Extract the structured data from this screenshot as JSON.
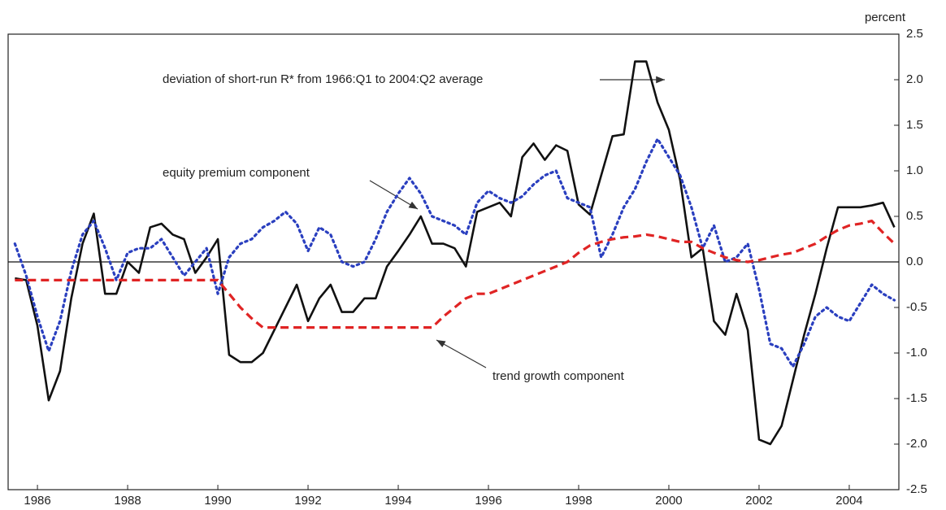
{
  "chart_data": {
    "type": "line",
    "y_label": "percent",
    "x": [
      1985.5,
      1985.75,
      1986,
      1986.25,
      1986.5,
      1986.75,
      1987,
      1987.25,
      1987.5,
      1987.75,
      1988,
      1988.25,
      1988.5,
      1988.75,
      1989,
      1989.25,
      1989.5,
      1989.75,
      1990,
      1990.25,
      1990.5,
      1990.75,
      1991,
      1991.25,
      1991.5,
      1991.75,
      1992,
      1992.25,
      1992.5,
      1992.75,
      1993,
      1993.25,
      1993.5,
      1993.75,
      1994,
      1994.25,
      1994.5,
      1994.75,
      1995,
      1995.25,
      1995.5,
      1995.75,
      1996,
      1996.25,
      1996.5,
      1996.75,
      1997,
      1997.25,
      1997.5,
      1997.75,
      1998,
      1998.25,
      1998.5,
      1998.75,
      1999,
      1999.25,
      1999.5,
      1999.75,
      2000,
      2000.25,
      2000.5,
      2000.75,
      2001,
      2001.25,
      2001.5,
      2001.75,
      2002,
      2002.25,
      2002.5,
      2002.75,
      2003,
      2003.25,
      2003.5,
      2003.75,
      2004,
      2004.25,
      2004.5,
      2004.75,
      2005
    ],
    "series": [
      {
        "name": "deviation of short-run R* from 1966:Q1 to 2004:Q2 average",
        "color": "#111111",
        "style": "solid",
        "values": [
          -0.18,
          -0.2,
          -0.7,
          -1.52,
          -1.2,
          -0.4,
          0.2,
          0.53,
          -0.35,
          -0.35,
          0,
          -0.12,
          0.38,
          0.42,
          0.3,
          0.25,
          -0.12,
          0.05,
          0.25,
          -1.02,
          -1.1,
          -1.1,
          -1.0,
          -0.75,
          -0.5,
          -0.25,
          -0.65,
          -0.4,
          -0.25,
          -0.55,
          -0.55,
          -0.4,
          -0.4,
          -0.05,
          0.12,
          0.3,
          0.5,
          0.2,
          0.2,
          0.15,
          -0.05,
          0.55,
          0.6,
          0.65,
          0.5,
          1.15,
          1.3,
          1.12,
          1.28,
          1.22,
          0.63,
          0.52,
          0.95,
          1.38,
          1.4,
          2.2,
          2.2,
          1.75,
          1.45,
          0.9,
          0.05,
          0.15,
          -0.65,
          -0.8,
          -0.35,
          -0.75,
          -1.95,
          -2.0,
          -1.8,
          -1.3,
          -0.8,
          -0.35,
          0.15,
          0.6,
          0.6,
          0.6,
          0.62,
          0.65,
          0.38
        ]
      },
      {
        "name": "equity premium component",
        "color": "#2a3fbf",
        "style": "dotted",
        "values": [
          0.2,
          -0.15,
          -0.6,
          -0.98,
          -0.65,
          -0.1,
          0.3,
          0.45,
          0.15,
          -0.2,
          0.1,
          0.15,
          0.15,
          0.25,
          0.05,
          -0.15,
          0,
          0.15,
          -0.35,
          0.05,
          0.2,
          0.25,
          0.38,
          0.45,
          0.55,
          0.42,
          0.12,
          0.38,
          0.3,
          0,
          -0.05,
          0,
          0.25,
          0.55,
          0.75,
          0.92,
          0.75,
          0.5,
          0.45,
          0.4,
          0.3,
          0.65,
          0.78,
          0.7,
          0.65,
          0.72,
          0.85,
          0.95,
          1.0,
          0.7,
          0.65,
          0.6,
          0.05,
          0.3,
          0.6,
          0.8,
          1.1,
          1.35,
          1.15,
          0.95,
          0.6,
          0.15,
          0.4,
          0,
          0.05,
          0.2,
          -0.3,
          -0.9,
          -0.95,
          -1.15,
          -0.9,
          -0.6,
          -0.5,
          -0.6,
          -0.65,
          -0.45,
          -0.25,
          -0.35,
          -0.42
        ]
      },
      {
        "name": "trend growth component",
        "color": "#e02424",
        "style": "dashed",
        "values": [
          -0.2,
          -0.2,
          -0.2,
          -0.2,
          -0.2,
          -0.2,
          -0.2,
          -0.2,
          -0.2,
          -0.2,
          -0.2,
          -0.2,
          -0.2,
          -0.2,
          -0.2,
          -0.2,
          -0.2,
          -0.2,
          -0.2,
          -0.35,
          -0.5,
          -0.62,
          -0.72,
          -0.72,
          -0.72,
          -0.72,
          -0.72,
          -0.72,
          -0.72,
          -0.72,
          -0.72,
          -0.72,
          -0.72,
          -0.72,
          -0.72,
          -0.72,
          -0.72,
          -0.72,
          -0.6,
          -0.5,
          -0.4,
          -0.35,
          -0.35,
          -0.3,
          -0.25,
          -0.2,
          -0.15,
          -0.1,
          -0.05,
          0,
          0.1,
          0.18,
          0.22,
          0.25,
          0.27,
          0.28,
          0.3,
          0.28,
          0.25,
          0.22,
          0.22,
          0.15,
          0.1,
          0.05,
          0.02,
          0,
          0.02,
          0.05,
          0.08,
          0.1,
          0.15,
          0.2,
          0.28,
          0.35,
          0.4,
          0.42,
          0.45,
          0.32,
          0.2
        ]
      }
    ],
    "xlim": [
      1985.35,
      2005.1
    ],
    "xticks": [
      1986,
      1988,
      1990,
      1992,
      1994,
      1996,
      1998,
      2000,
      2002,
      2004
    ],
    "ylim": [
      -2.5,
      2.5
    ],
    "yticks": [
      2.5,
      {
        "value": 2,
        "label": "2.0"
      },
      1.5,
      {
        "value": 1,
        "label": "1.0"
      },
      0.5,
      {
        "value": 0,
        "label": "0.0"
      },
      -0.5,
      {
        "value": -1,
        "label": "-1.0"
      },
      -1.5,
      {
        "value": -2,
        "label": "-2.0"
      },
      -2.5
    ],
    "y_axis_side": "right",
    "grid": false
  }
}
